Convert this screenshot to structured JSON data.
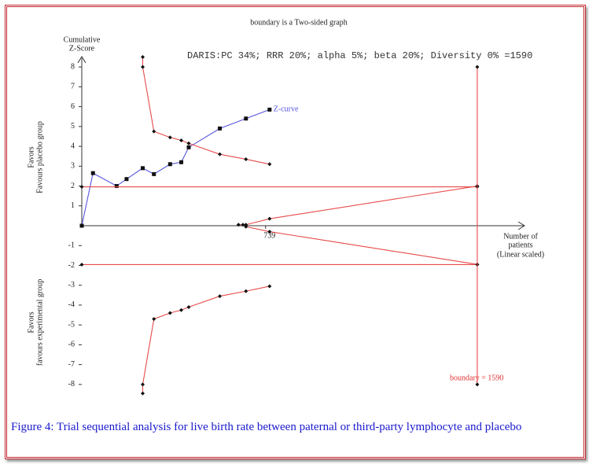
{
  "chart_data": {
    "type": "line",
    "title": "boundary is a Two-sided graph",
    "y_label": [
      "Cumulative",
      "Z-Score"
    ],
    "upper_label": [
      "Favors",
      "Favours placebo group"
    ],
    "lower_label": [
      "Favors",
      "favours experimental group"
    ],
    "x_label": [
      "Number of",
      "patients",
      "(Linear scaled)"
    ],
    "annotation": "DARIS:PC 34%; RRR 20%; alpha 5%; beta 20%; Diversity 0% =1590",
    "boundary_label": "boundary = 1590",
    "xlim": [
      0,
      1780
    ],
    "xticks": [
      739
    ],
    "ylim": [
      -8.6,
      8.6
    ],
    "yticks": [
      -8,
      -7,
      -6,
      -5,
      -4,
      -3,
      -2,
      -1,
      1,
      2,
      3,
      4,
      5,
      6,
      7,
      8
    ],
    "series": [
      {
        "name": "Z-curve",
        "color": "#5555dd",
        "marker": "square",
        "x": [
          0,
          45,
          140,
          180,
          245,
          290,
          355,
          400,
          430,
          555,
          660,
          755
        ],
        "values": [
          0,
          2.65,
          2.0,
          2.35,
          2.9,
          2.6,
          3.1,
          3.2,
          3.95,
          4.9,
          5.4,
          5.85
        ]
      },
      {
        "color": "#e84a4a",
        "marker": "diamond",
        "x": [
          245,
          245,
          290,
          355,
          400,
          430,
          555,
          660,
          755
        ],
        "values": [
          8.5,
          8.0,
          4.75,
          4.45,
          4.3,
          4.15,
          3.6,
          3.35,
          3.1
        ]
      },
      {
        "color": "#e84a4a",
        "marker": "diamond",
        "x": [
          245,
          245,
          290,
          355,
          400,
          430,
          555,
          660,
          755
        ],
        "values": [
          -8.45,
          -8.0,
          -4.7,
          -4.4,
          -4.25,
          -4.1,
          -3.55,
          -3.3,
          -3.05
        ]
      },
      {
        "color": "#e84a4a",
        "marker": "diamond",
        "x": [
          630,
          648,
          660,
          755,
          1590
        ],
        "values": [
          0.05,
          0.05,
          0.05,
          0.35,
          2.0
        ]
      },
      {
        "color": "#e84a4a",
        "marker": "diamond",
        "x": [
          660,
          755,
          1590
        ],
        "values": [
          -0.05,
          -0.3,
          -1.95
        ]
      },
      {
        "color": "#e84a4a",
        "marker": "diamond",
        "x": [
          0,
          1590
        ],
        "values": [
          1.96,
          1.96
        ]
      },
      {
        "color": "#e84a4a",
        "marker": "diamond",
        "x": [
          0,
          1590
        ],
        "values": [
          -1.96,
          -1.96
        ]
      },
      {
        "color": "#e84a4a",
        "marker": "diamond",
        "x": [
          1590,
          1590
        ],
        "values": [
          8,
          -8
        ]
      }
    ]
  },
  "caption": "Figure 4: Trial sequential analysis for live birth rate between paternal or third-party lymphocyte and placebo"
}
